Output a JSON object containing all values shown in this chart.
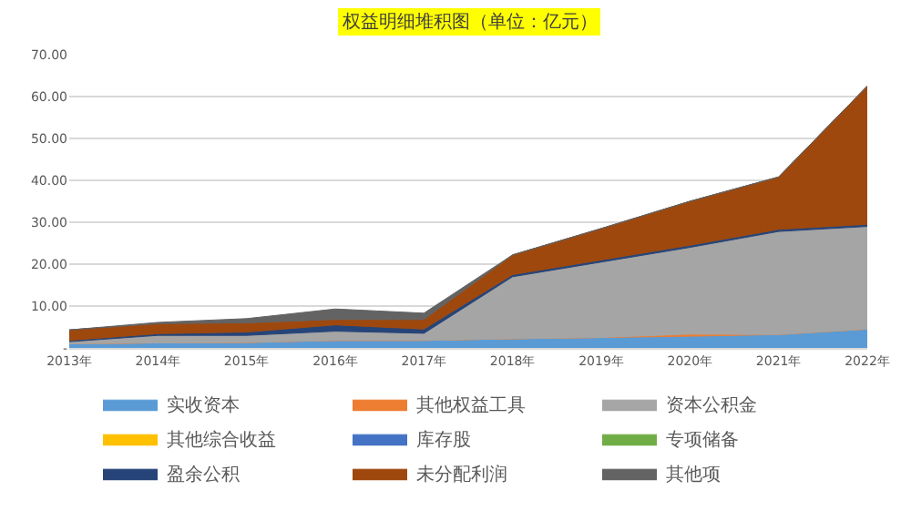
{
  "chart_data": {
    "type": "area",
    "stacked": true,
    "title": "权益明细堆积图（单位：亿元）",
    "categories": [
      "2013年",
      "2014年",
      "2015年",
      "2016年",
      "2017年",
      "2018年",
      "2019年",
      "2020年",
      "2021年",
      "2022年"
    ],
    "series": [
      {
        "name": "实收资本",
        "color": "#5b9bd5",
        "values": [
          1,
          1.2,
          1.3,
          1.8,
          1.8,
          2.2,
          2.5,
          2.8,
          3.2,
          4.5
        ]
      },
      {
        "name": "其他权益工具",
        "color": "#ed7d31",
        "values": [
          0,
          0,
          0,
          0,
          0,
          0,
          0,
          0.5,
          0,
          0
        ]
      },
      {
        "name": "资本公积金",
        "color": "#a5a5a5",
        "values": [
          0.5,
          1.8,
          1.7,
          2.2,
          1.7,
          14.8,
          18,
          20.7,
          24.6,
          24.5
        ]
      },
      {
        "name": "其他综合收益",
        "color": "#ffc000",
        "values": [
          null,
          null,
          null,
          null,
          null,
          null,
          null,
          null,
          null,
          null
        ]
      },
      {
        "name": "库存股",
        "color": "#4472c4",
        "values": [
          null,
          null,
          null,
          null,
          null,
          null,
          null,
          null,
          null,
          null
        ]
      },
      {
        "name": "专项储备",
        "color": "#70ad47",
        "values": [
          null,
          null,
          null,
          null,
          null,
          null,
          null,
          null,
          null,
          null
        ]
      },
      {
        "name": "盈余公积",
        "color": "#264478",
        "values": [
          0.3,
          0.4,
          0.8,
          1.5,
          1.0,
          0.5,
          0.5,
          0.5,
          0.5,
          0.5
        ]
      },
      {
        "name": "未分配利润",
        "color": "#9e480e",
        "values": [
          2.5,
          2.4,
          2.2,
          1.3,
          2.3,
          4.7,
          7.5,
          10.5,
          12.5,
          33
        ]
      },
      {
        "name": "其他项",
        "color": "#636363",
        "values": [
          0,
          0.3,
          1.0,
          2.5,
          1.5,
          0,
          0,
          0,
          0,
          0
        ]
      }
    ],
    "ylim": [
      0,
      70
    ],
    "yticks": [
      {
        "value": 0,
        "label": "-"
      },
      {
        "value": 10,
        "label": "10.00"
      },
      {
        "value": 20,
        "label": "20.00"
      },
      {
        "value": 30,
        "label": "30.00"
      },
      {
        "value": 40,
        "label": "40.00"
      },
      {
        "value": 50,
        "label": "50.00"
      },
      {
        "value": 60,
        "label": "60.00"
      },
      {
        "value": 70,
        "label": "70.00"
      }
    ],
    "grid": "y",
    "legend": "bottom"
  }
}
